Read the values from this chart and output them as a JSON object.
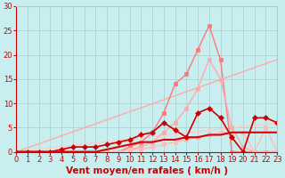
{
  "title": "",
  "xlabel": "Vent moyen/en rafales ( km/h )",
  "ylabel": "",
  "xlim": [
    0,
    23
  ],
  "ylim": [
    0,
    30
  ],
  "xticks": [
    0,
    1,
    2,
    3,
    4,
    5,
    6,
    7,
    8,
    9,
    10,
    11,
    12,
    13,
    14,
    15,
    16,
    17,
    18,
    19,
    20,
    21,
    22,
    23
  ],
  "yticks": [
    0,
    5,
    10,
    15,
    20,
    25,
    30
  ],
  "background_color": "#c8eef0",
  "grid_color": "#aacccc",
  "series": [
    {
      "label": "straight_line1",
      "x": [
        0,
        23
      ],
      "y": [
        0,
        19.0
      ],
      "color": "#ffaaaa",
      "marker": null,
      "linewidth": 1.0,
      "markersize": 0,
      "linestyle": "-"
    },
    {
      "label": "straight_line2",
      "x": [
        0,
        23
      ],
      "y": [
        0,
        6.0
      ],
      "color": "#ffcccc",
      "marker": null,
      "linewidth": 1.0,
      "markersize": 0,
      "linestyle": "-"
    },
    {
      "label": "pink_jagged_high",
      "x": [
        0,
        1,
        2,
        3,
        4,
        5,
        6,
        7,
        8,
        9,
        10,
        11,
        12,
        13,
        14,
        15,
        16,
        17,
        18,
        19,
        20,
        21,
        22,
        23
      ],
      "y": [
        0,
        0,
        0,
        0,
        0,
        0,
        0,
        0,
        0,
        0,
        1,
        2,
        4,
        8,
        14,
        16,
        21,
        26,
        19,
        0,
        0,
        0,
        0,
        0
      ],
      "color": "#ff7777",
      "marker": "s",
      "linewidth": 1.0,
      "markersize": 2.5,
      "linestyle": "-"
    },
    {
      "label": "pink_jagged_mid",
      "x": [
        0,
        1,
        2,
        3,
        4,
        5,
        6,
        7,
        8,
        9,
        10,
        11,
        12,
        13,
        14,
        15,
        16,
        17,
        18,
        19,
        20,
        21,
        22,
        23
      ],
      "y": [
        0,
        0,
        0,
        0,
        0,
        0,
        0,
        0,
        0,
        0,
        0.5,
        1,
        2,
        4,
        6,
        9,
        13,
        19,
        15,
        5,
        1,
        0,
        0,
        0
      ],
      "color": "#ffaaaa",
      "marker": "s",
      "linewidth": 1.0,
      "markersize": 2.5,
      "linestyle": "-"
    },
    {
      "label": "flat_pink_low",
      "x": [
        0,
        1,
        2,
        3,
        4,
        5,
        6,
        7,
        8,
        9,
        10,
        11,
        12,
        13,
        14,
        15,
        16,
        17,
        18,
        19,
        20,
        21,
        22,
        23
      ],
      "y": [
        0,
        0,
        0,
        0,
        0,
        0,
        0,
        0,
        0,
        0,
        0.5,
        0.5,
        1,
        1.5,
        2,
        2.5,
        3,
        3.5,
        4,
        4,
        4,
        0,
        5,
        0
      ],
      "color": "#ffbbbb",
      "marker": "s",
      "linewidth": 1.0,
      "markersize": 2.5,
      "linestyle": "-"
    },
    {
      "label": "dark_red_erratic",
      "x": [
        0,
        1,
        2,
        3,
        4,
        5,
        6,
        7,
        8,
        9,
        10,
        11,
        12,
        13,
        14,
        15,
        16,
        17,
        18,
        19,
        20,
        21,
        22,
        23
      ],
      "y": [
        0,
        0,
        0,
        0,
        0.5,
        1,
        1,
        1,
        1.5,
        2,
        2.5,
        3.5,
        4,
        6,
        4.5,
        3,
        8,
        9,
        7,
        3,
        0,
        7,
        7,
        6
      ],
      "color": "#cc0000",
      "marker": "D",
      "linewidth": 1.2,
      "markersize": 3.0,
      "linestyle": "-"
    },
    {
      "label": "dark_flat",
      "x": [
        0,
        1,
        2,
        3,
        4,
        5,
        6,
        7,
        8,
        9,
        10,
        11,
        12,
        13,
        14,
        15,
        16,
        17,
        18,
        19,
        20,
        21,
        22,
        23
      ],
      "y": [
        0,
        0,
        0,
        0,
        0,
        0,
        0,
        0,
        0.5,
        1,
        1.5,
        2,
        2,
        2.5,
        2.5,
        3,
        3,
        3.5,
        3.5,
        4,
        4,
        4,
        4,
        4
      ],
      "color": "#dd0000",
      "marker": null,
      "linewidth": 1.5,
      "markersize": 0,
      "linestyle": "-"
    }
  ],
  "font_color": "#cc0000",
  "tick_fontsize": 6.0,
  "label_fontsize": 7.5
}
